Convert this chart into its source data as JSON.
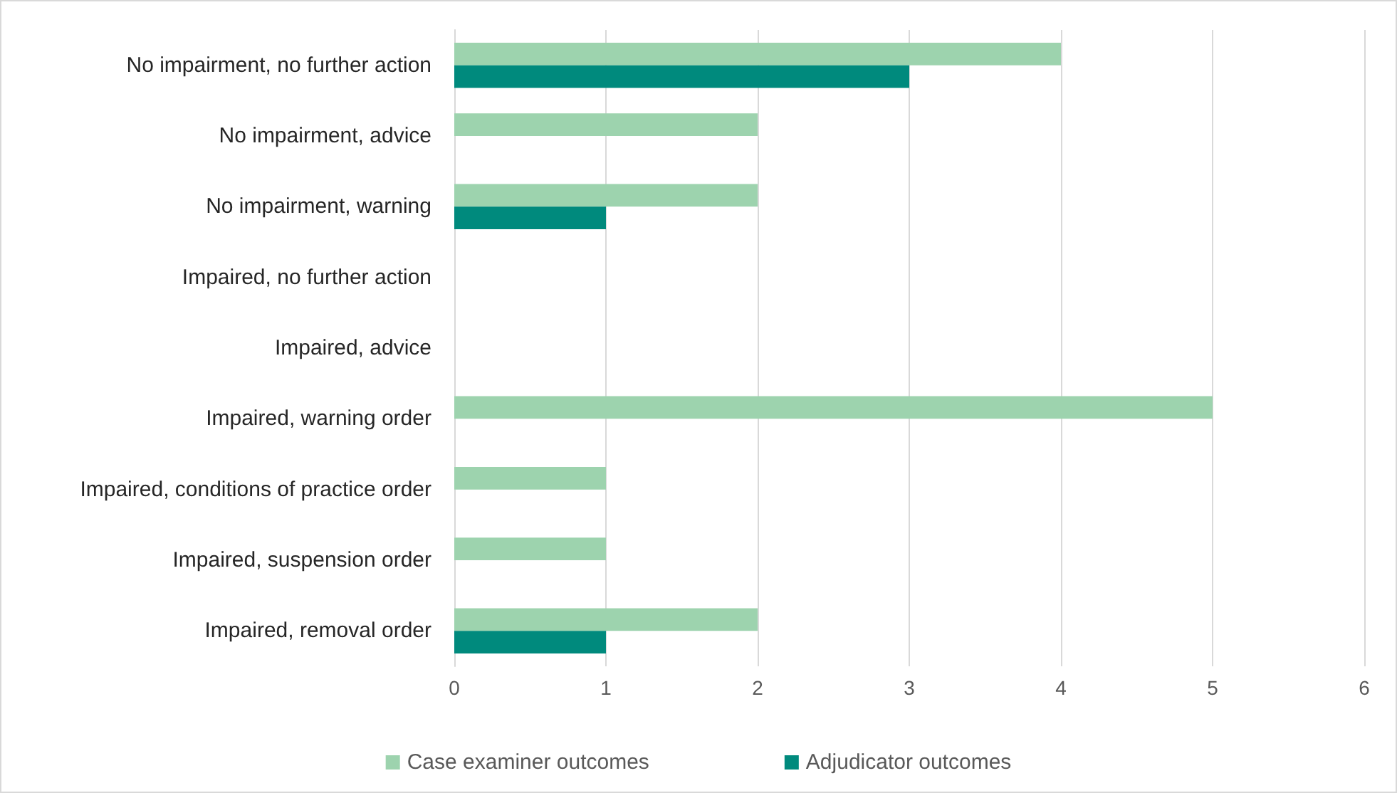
{
  "chart_data": {
    "type": "bar",
    "orientation": "horizontal",
    "categories": [
      "No impairment, no further action",
      "No impairment, advice",
      "No impairment, warning",
      "Impaired, no further action",
      "Impaired, advice",
      "Impaired, warning order",
      "Impaired, conditions of practice order",
      "Impaired, suspension order",
      "Impaired, removal order"
    ],
    "series": [
      {
        "name": "Case examiner outcomes",
        "color": "#9dd3ae",
        "values": [
          4,
          2,
          2,
          0,
          0,
          5,
          1,
          1,
          2
        ]
      },
      {
        "name": "Adjudicator outcomes",
        "color": "#008a7d",
        "values": [
          3,
          0,
          1,
          0,
          0,
          0,
          0,
          0,
          1
        ]
      }
    ],
    "xlim": [
      0,
      6
    ],
    "xticks": [
      0,
      1,
      2,
      3,
      4,
      5,
      6
    ],
    "grid": "x",
    "legend": "bottom"
  }
}
